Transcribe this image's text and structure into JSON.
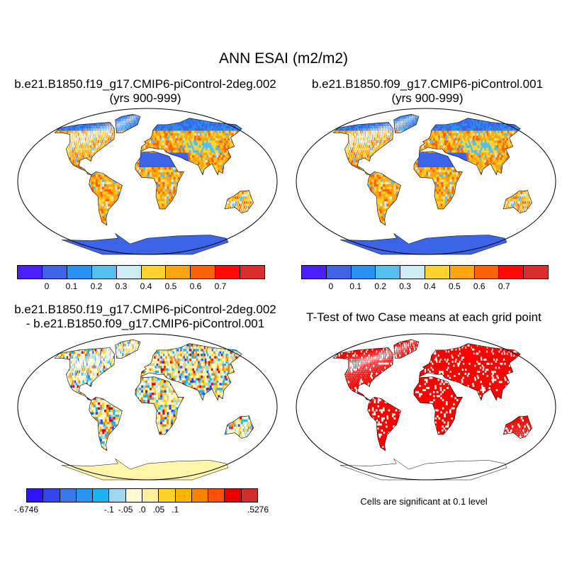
{
  "title": "ANN ESAI (m2/m2)",
  "panels": [
    {
      "title_line1": "b.e21.B1850.f19_g17.CMIP6-piControl-2deg.002",
      "title_line2": "(yrs 900-999)"
    },
    {
      "title_line1": "b.e21.B1850.f09_g17.CMIP6-piControl.001",
      "title_line2": "(yrs 900-999)"
    },
    {
      "title_line1": "b.e21.B1850.f19_g17.CMIP6-piControl-2deg.002",
      "title_line2": "- b.e21.B1850.f09_g17.CMIP6-piControl.001"
    },
    {
      "title_line1": "T-Test of two Case means at each grid point"
    }
  ],
  "significance_note": "Cells are significant at 0.1 level",
  "colorbar_main": {
    "colors": [
      "#4b1efa",
      "#3c64e6",
      "#2891f5",
      "#55bef0",
      "#cdebf5",
      "#ffd22d",
      "#ffa50f",
      "#fa6405",
      "#ff0a00",
      "#dc2d2d"
    ],
    "tick_labels": [
      "0",
      "0.1",
      "0.2",
      "0.3",
      "0.4",
      "0.5",
      "0.6",
      "0.7"
    ]
  },
  "colorbar_diff": {
    "colors": [
      "#2d14fa",
      "#3246eb",
      "#3778eb",
      "#2894f0",
      "#19b4f5",
      "#a0d7f0",
      "#fffad2",
      "#fff09b",
      "#ffd228",
      "#ffb400",
      "#fa8200",
      "#fa5000",
      "#e60000",
      "#d22d2d"
    ],
    "tick_labels": [
      "-.6746",
      "-.1",
      "-.05",
      ".0",
      ".05",
      ".1",
      ".5276"
    ]
  },
  "map_colors": {
    "ocean": "#ffffff",
    "antarctica_cases": "#3c64e6",
    "antarctica_diff": "#fff5aa",
    "significant": "#ff0000"
  }
}
